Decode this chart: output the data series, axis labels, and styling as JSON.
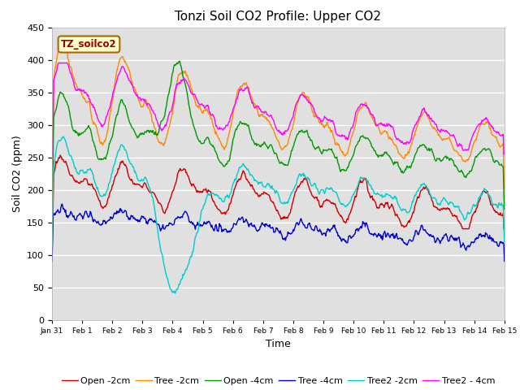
{
  "title": "Tonzi Soil CO2 Profile: Upper CO2",
  "xlabel": "Time",
  "ylabel": "Soil CO2 (ppm)",
  "ylim": [
    0,
    450
  ],
  "yticks": [
    0,
    50,
    100,
    150,
    200,
    250,
    300,
    350,
    400,
    450
  ],
  "legend_label": "TZ_soilco2",
  "series_labels": [
    "Open -2cm",
    "Tree -2cm",
    "Open -4cm",
    "Tree -4cm",
    "Tree2 -2cm",
    "Tree2 - 4cm"
  ],
  "series_colors": [
    "#cc0000",
    "#ff8800",
    "#009900",
    "#0000cc",
    "#00cccc",
    "#ff00ff"
  ],
  "xtick_labels": [
    "Jan 31",
    "Feb 1",
    "Feb 2",
    "Feb 3",
    "Feb 4",
    "Feb 5",
    "Feb 6",
    "Feb 7",
    "Feb 8",
    "Feb 9",
    "Feb 10",
    "Feb 11",
    "Feb 12",
    "Feb 13",
    "Feb 14",
    "Feb 15"
  ],
  "background_color": "#ffffff",
  "plot_bg_color": "#e0e0e0",
  "title_fontsize": 11,
  "axis_fontsize": 9,
  "legend_fontsize": 8,
  "linewidth": 1.0
}
